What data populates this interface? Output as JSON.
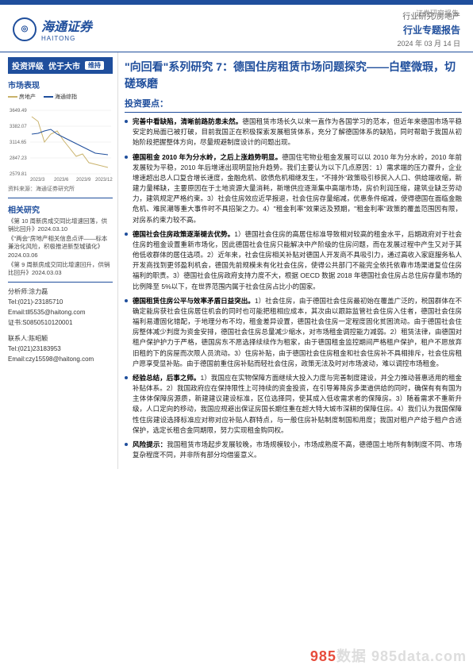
{
  "header": {
    "brand_cn": "海通证券",
    "brand_en": "HAITONG",
    "industry_line": "行业研究/房地产",
    "doc_type": "行业专题报告",
    "report_label": "证券研究报告",
    "date": "2024 年 03 月 14 日"
  },
  "sidebar": {
    "rating_label": "投资评级",
    "rating_value": "优于大市",
    "rating_maintain": "维持",
    "perf_heading": "市场表现",
    "chart": {
      "series": [
        {
          "name": "房地产",
          "color": "#c9b26b"
        },
        {
          "name": "海通综指",
          "color": "#1f4e9c"
        }
      ],
      "x_labels": [
        "2023/3",
        "2023/6",
        "2023/9",
        "2023/12"
      ],
      "y_axis": [
        3649.49,
        3382.07,
        3114.65,
        2847.23,
        2579.81
      ],
      "housing_index": [
        3500,
        3420,
        3050,
        3180,
        3250,
        3100,
        2950,
        2800,
        2850,
        2700,
        2680,
        2620
      ],
      "haitong_index": [
        3200,
        3210,
        3250,
        3280,
        3200,
        3150,
        3100,
        3050,
        3000,
        2950,
        2900,
        2880
      ],
      "background": "#ffffff",
      "grid_color": "#e6e6e6",
      "label_fontsize": 7
    },
    "chart_src": "资料来源：海通证券研究所",
    "related_heading": "相关研究",
    "related": [
      {
        "t": "《第 10 周新房成交同比增速回落，供销比回升》2024.03.10"
      },
      {
        "t": "《\"两会\"房地产相关信息点评——标本兼治化风险，积极推进新型城镇化》2024.03.06"
      },
      {
        "t": "《第 9 周新房成交同比增速回升，供销比回升》2024.03.03"
      }
    ],
    "analyst": {
      "a_label": "分析师:涂力磊",
      "tel": "Tel:(021)-23185710",
      "email": "Email:tll5535@haitong.com",
      "cert": "证书:S0850510120001",
      "contact_label": "联系人:陈昭颖",
      "c_tel": "Tel:(021)23183953",
      "c_email": "Email:czy15598@haitong.com"
    }
  },
  "main": {
    "title": "\"向回看\"系列研究 7：德国住房租赁市场问题探究——白壁微瑕，切磋琢磨",
    "yaodian": "投资要点：",
    "bullets": [
      {
        "lead": "完善中看缺陷，清晰前路防患未然。",
        "body": "德国租赁市场长久以来一直作为各国学习的范本，但近年来德国市场平稳安定的局面已被打破，目前我国正在积极探索发展租赁体系，充分了解德国体系的缺陷，同时帮助于我国从初始阶段把握整体方向，尽量规避制度设计的问题出现。"
      },
      {
        "lead": "德国租金 2010 年为分水岭，之后上涨趋势明显。",
        "body": "德国住宅物业租金发展可以以 2010 年为分水岭，2010 年前发展较为平稳，2010 年后增速出现明显抬升趋势。我们主要认为以下几点原因：1）需求端的压力骤升，企业增速超出总人口复合增长速度，金融危机、欧债危机相继发生，\"不排外\"政策吸引移民入人口、供给端收缩，新建力量稀缺，主要原因在于土地资源大量消耗，新增供应逐渐集中高端市场，房价利润压缩，建筑业缺乏劳动力，建筑规定严格约束。3）社会住房效应近早报退，社会住房存量缩减，优惠条件缩减，使得德国在面临金融危机、难民潮等重大事件时不具招架之力。4）\"租金利率\"效果远及预期，\"租金利率\"政策的覆盖范围因有限，对房系约束力较不高。"
      },
      {
        "lead": "德国社会住房政策逐渐褪去优势。",
        "body": "1）德国社会住房的高居住标准导致相对较高的租金水平，后期政府对于社会住房的租金设置重新市场化，因此德国社会住房只能解决中产阶级的住房问题，而在发展过程中产生又对于其他低收群体的居住选项。2）近年来，社会住房相关补贴对德国人开发商不具吸引力，通过高收入家庭服务私人开发商找到更邻盈利机会，德国先前规模未有化社会住房，使得公共部门不能完全依托依靠市场渠道复位住房福利的职责。3）德国社会住房政府支持力度不大，根据 OECD 数据 2018 年德国社会住房占总住房存量市场的比例降至 5%以下，在世界范围内属于社会住房占比小的国家。"
      },
      {
        "lead": "德国租赁住房公平与效率矛盾日益突出。",
        "body": "1）社会住房，由于德国社会住房最初始在覆盖广泛的，税国群体在不确定能房获社会住房居住机会的同时也可能把租相应成本，其次由以跟踪监管社会住房入住者，德国社会住房福利易遭固化错配，于地理分布不均，租金差异设置，德国社会住房一定程度固化贫困流动。由于德国社会住房整体减少判度为资金安排，德国社会住房总量减少缩水，对市场租金调控能力减弱。2）租赁法律，由德国对租户保护护力于严格，德国房东不愿选择续续作为租家，由于德国租金监控期间严格租户保护，租户不愿放弃旧租的下的房屋而次限人员流动。3）住房补贴，由于德国社会住房租金和社会住房补不具相排斥，社会住房租户愿享受显补贴。由于德国前重住房补贴而轻社会住房，政策无法及时对市场波动，难以调控市场租金。"
      },
      {
        "lead": "经验总结，后事之师。",
        "body": "1）我国应在实物保障方面继续大投入力度与完善制度建设，并全力推动普惠适用的租金补贴体系。2）我国政府应在保持限性上可持续的资金投资，在引导筹降房多渠道供给的同时，确保有有有国为主体体保障房源质，新建建议建设标准，区位选择同，使其成入低收需求者的保障房。3）随着需求不重新升级，人口定向的移动，我国应规避出保证房国长期住重在超大特大城市深耕的保障住房。4）我们认为我国保障性住房建设选择标准应对称对应补贴人群特点，与一般住房补贴制度制国和用度；我国对租户产给于租户合适保护，选定长租合金同期限，努力实现租金购同权。"
      },
      {
        "lead": "风险提示：",
        "body": "我国租赁市场起步发展较晚，市场规模较小，市场成熟度不高，德德国土地所有制制度不同、市场复杂程度不同，并非所有部分均借鉴意义。"
      }
    ]
  },
  "watermark": {
    "p1": "985",
    "p2": "数据 985data.com"
  }
}
